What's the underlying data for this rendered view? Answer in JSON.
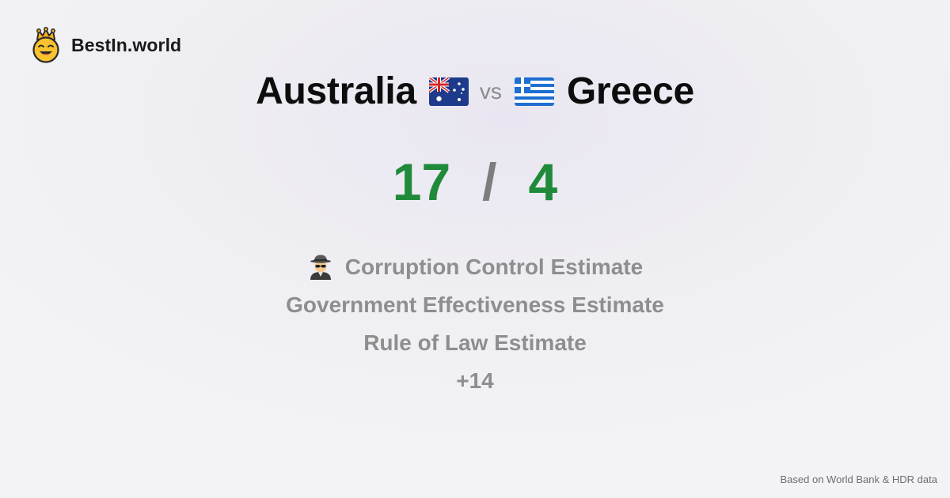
{
  "brand": {
    "name": "BestIn.world",
    "icon": "crowned-smiley-icon"
  },
  "comparison": {
    "left_country": "Australia",
    "left_flag": "australia-flag-icon",
    "vs_label": "vs",
    "right_country": "Greece",
    "right_flag": "greece-flag-icon"
  },
  "score": {
    "left": "17",
    "separator": "/",
    "right": "4",
    "color": "#1f8a3a"
  },
  "metrics": [
    {
      "label": "Corruption Control Estimate",
      "icon": "spy-icon"
    },
    {
      "label": "Government Effectiveness Estimate"
    },
    {
      "label": "Rule of Law Estimate"
    },
    {
      "label": "+14"
    }
  ],
  "footer": {
    "source": "Based on World Bank & HDR data"
  }
}
